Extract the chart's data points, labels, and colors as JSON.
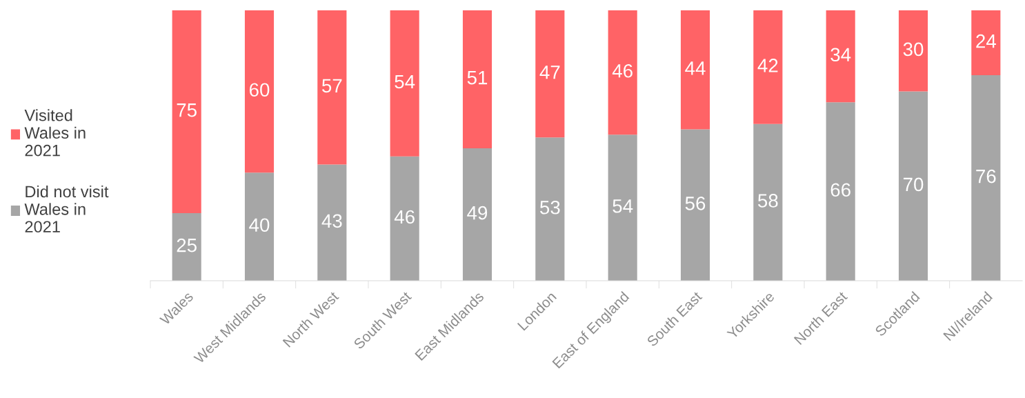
{
  "chart_data": {
    "type": "bar",
    "stacked": true,
    "data_labels": true,
    "legend": "left",
    "grid": false,
    "tick_labels": "x",
    "categories": [
      "Wales",
      "West Midlands",
      "North West",
      "South West",
      "East Midlands",
      "London",
      "East of England",
      "South East",
      "Yorkshire",
      "North East",
      "Scotland",
      "NI/Ireland"
    ],
    "series": [
      {
        "name": "Did not visit\nWales in\n2021",
        "color": "#a6a6a6",
        "values": [
          25,
          40,
          43,
          46,
          49,
          53,
          54,
          56,
          58,
          66,
          70,
          76
        ]
      },
      {
        "name": "Visited\nWales in\n2021",
        "color": "#ff6366",
        "values": [
          75,
          60,
          57,
          54,
          51,
          47,
          46,
          44,
          42,
          34,
          30,
          24
        ]
      }
    ]
  }
}
